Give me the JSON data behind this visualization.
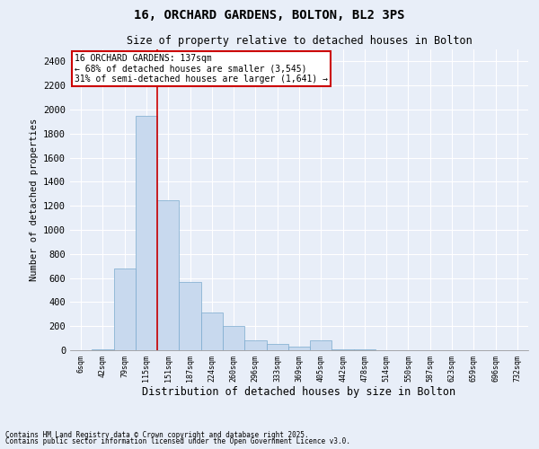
{
  "title": "16, ORCHARD GARDENS, BOLTON, BL2 3PS",
  "subtitle": "Size of property relative to detached houses in Bolton",
  "xlabel": "Distribution of detached houses by size in Bolton",
  "ylabel": "Number of detached properties",
  "bar_color": "#c8d9ee",
  "bar_edge_color": "#7aaace",
  "background_color": "#e8eef8",
  "fig_background_color": "#e8eef8",
  "grid_color": "#ffffff",
  "categories": [
    "6sqm",
    "42sqm",
    "79sqm",
    "115sqm",
    "151sqm",
    "187sqm",
    "224sqm",
    "260sqm",
    "296sqm",
    "333sqm",
    "369sqm",
    "405sqm",
    "442sqm",
    "478sqm",
    "514sqm",
    "550sqm",
    "587sqm",
    "623sqm",
    "659sqm",
    "696sqm",
    "732sqm"
  ],
  "values": [
    2,
    5,
    680,
    1950,
    1250,
    570,
    310,
    205,
    80,
    50,
    30,
    80,
    10,
    5,
    2,
    2,
    1,
    1,
    1,
    1,
    1
  ],
  "ylim": [
    0,
    2500
  ],
  "yticks": [
    0,
    200,
    400,
    600,
    800,
    1000,
    1200,
    1400,
    1600,
    1800,
    2000,
    2200,
    2400
  ],
  "vline_position": 3.48,
  "vline_color": "#cc0000",
  "annotation_text": "16 ORCHARD GARDENS: 137sqm\n← 68% of detached houses are smaller (3,545)\n31% of semi-detached houses are larger (1,641) →",
  "annotation_box_color": "#ffffff",
  "annotation_box_edge": "#cc0000",
  "footer_line1": "Contains HM Land Registry data © Crown copyright and database right 2025.",
  "footer_line2": "Contains public sector information licensed under the Open Government Licence v3.0."
}
